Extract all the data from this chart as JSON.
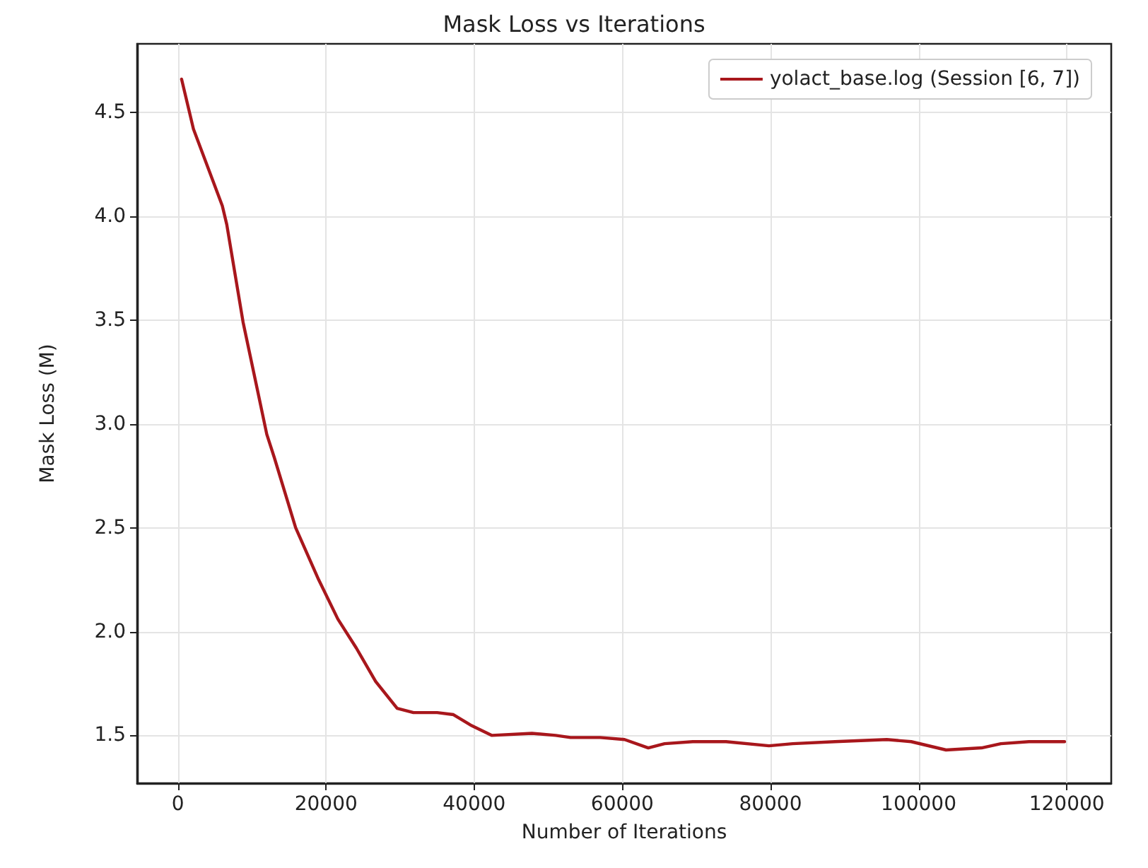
{
  "chart_data": {
    "type": "line",
    "title": "Mask Loss vs Iterations",
    "xlabel": "Number of Iterations",
    "ylabel": "Mask Loss (M)",
    "xlim": [
      -5500,
      126000
    ],
    "xticks": [
      0,
      20000,
      40000,
      60000,
      80000,
      100000,
      120000
    ],
    "ylim": [
      1.27,
      4.83
    ],
    "yticks": [
      1.5,
      {
        "value": 2,
        "label": "2.0"
      },
      2.5,
      {
        "value": 3,
        "label": "3.0"
      },
      3.5,
      {
        "value": 4,
        "label": "4.0"
      },
      4.5
    ],
    "grid": true,
    "legend": "top right",
    "marker": "none",
    "line_style": "solid",
    "series": [
      {
        "name": "yolact_base.log (Session [6, 7])",
        "color": "#a8171c",
        "x": [
          500,
          1500,
          2100,
          6000,
          6600,
          8800,
          10700,
          12000,
          13000,
          15900,
          19000,
          21600,
          24100,
          26700,
          29600,
          31800,
          35000,
          37200,
          39500,
          42400,
          47800,
          51000,
          53000,
          55500,
          57000,
          60300,
          63500,
          65700,
          69500,
          74000,
          79800,
          83000,
          88700,
          95700,
          99000,
          103700,
          108500,
          111100,
          114900,
          119700
        ],
        "values": [
          4.66,
          4.51,
          4.42,
          4.05,
          3.96,
          3.49,
          3.17,
          2.95,
          2.84,
          2.5,
          2.25,
          2.06,
          1.92,
          1.76,
          1.63,
          1.61,
          1.61,
          1.6,
          1.55,
          1.5,
          1.51,
          1.5,
          1.49,
          1.49,
          1.49,
          1.48,
          1.44,
          1.46,
          1.47,
          1.47,
          1.45,
          1.46,
          1.47,
          1.48,
          1.47,
          1.43,
          1.44,
          1.46,
          1.47,
          1.47
        ]
      }
    ]
  }
}
